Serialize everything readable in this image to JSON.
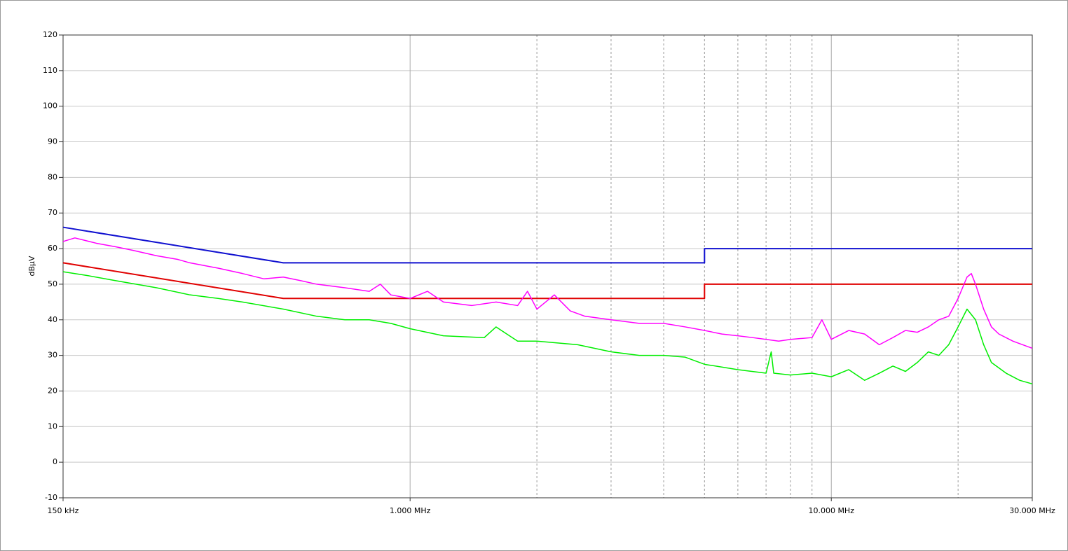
{
  "chart_data": {
    "type": "line",
    "y_label": "dBµV",
    "log_x": true,
    "grid": true,
    "xlim": [
      0.15,
      30
    ],
    "xticks": [
      {
        "value": 0.15,
        "label": "150 kHz"
      },
      {
        "value": 1,
        "label": "1.000 MHz"
      },
      {
        "value": 10,
        "label": "10.000 MHz"
      },
      {
        "value": 30,
        "label": "30.000 MHz"
      }
    ],
    "xminorticks": [
      2,
      3,
      4,
      5,
      6,
      7,
      8,
      9,
      20
    ],
    "ylim": [
      -10,
      120
    ],
    "yticks": [
      -10,
      0,
      10,
      20,
      30,
      40,
      50,
      60,
      70,
      80,
      90,
      100,
      110,
      120
    ],
    "series": [
      {
        "color": "#1010d0",
        "width": 2,
        "x": [
          0.15,
          0.5,
          5,
          5,
          30
        ],
        "values": [
          66,
          56,
          56,
          60,
          60
        ]
      },
      {
        "color": "#e00000",
        "width": 2,
        "x": [
          0.15,
          0.5,
          5,
          5,
          30
        ],
        "values": [
          56,
          46,
          46,
          50,
          50
        ]
      },
      {
        "color": "#ff00ff",
        "width": 1.5,
        "x": [
          0.15,
          0.16,
          0.18,
          0.2,
          0.22,
          0.25,
          0.28,
          0.3,
          0.35,
          0.4,
          0.45,
          0.5,
          0.55,
          0.6,
          0.7,
          0.8,
          0.85,
          0.9,
          1.0,
          1.1,
          1.2,
          1.4,
          1.6,
          1.8,
          1.9,
          2.0,
          2.2,
          2.4,
          2.6,
          3.0,
          3.5,
          4.0,
          4.5,
          5.0,
          5.5,
          6.0,
          6.5,
          7.0,
          7.5,
          8,
          9,
          9.5,
          10,
          11,
          12,
          13,
          14,
          15,
          16,
          17,
          18,
          19,
          20,
          21,
          21.5,
          22,
          23,
          24,
          25,
          27,
          30
        ],
        "values": [
          62,
          63,
          61.5,
          60.5,
          59.5,
          58,
          57,
          56,
          54.5,
          53,
          51.5,
          52,
          51,
          50,
          49,
          48,
          50,
          47,
          46,
          48,
          45,
          44,
          45,
          44,
          48,
          43,
          47,
          42.5,
          41,
          40,
          39,
          39,
          38,
          37,
          36,
          35.5,
          35,
          34.5,
          34,
          34.5,
          35,
          40,
          34.5,
          37,
          36,
          33,
          35,
          37,
          36.5,
          38,
          40,
          41,
          46,
          52,
          53,
          50,
          43,
          38,
          36,
          34,
          32
        ]
      },
      {
        "color": "#00ee00",
        "width": 1.5,
        "x": [
          0.15,
          0.17,
          0.2,
          0.25,
          0.3,
          0.35,
          0.4,
          0.5,
          0.6,
          0.7,
          0.8,
          0.9,
          1.0,
          1.2,
          1.5,
          1.6,
          1.8,
          2.0,
          2.5,
          3.0,
          3.5,
          4.0,
          4.5,
          5.0,
          6,
          7,
          7.2,
          7.3,
          8,
          9,
          10,
          11,
          12,
          13,
          14,
          15,
          16,
          17,
          18,
          19,
          20,
          21,
          22,
          23,
          24,
          26,
          28,
          30
        ],
        "values": [
          53.5,
          52.5,
          51,
          49,
          47,
          46,
          45,
          43,
          41,
          40,
          40,
          39,
          37.5,
          35.5,
          35,
          38,
          34,
          34,
          33,
          31,
          30,
          30,
          29.5,
          27.5,
          26,
          25,
          31,
          25,
          24.5,
          25,
          24,
          26,
          23,
          25,
          27,
          25.5,
          28,
          31,
          30,
          33,
          38,
          43,
          40,
          33,
          28,
          25,
          23,
          22
        ]
      }
    ]
  }
}
